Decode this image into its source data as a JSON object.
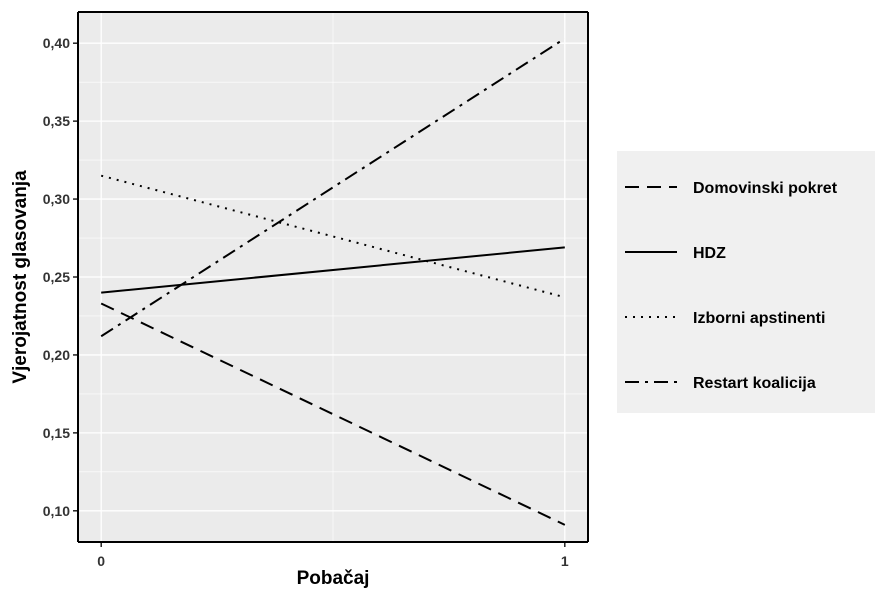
{
  "chart_data": {
    "type": "line",
    "xlabel": "Pobačaj",
    "ylabel": "Vjerojatnost glasovanja",
    "x": [
      0,
      1
    ],
    "x_tick_labels": [
      "0",
      "1"
    ],
    "xlim": [
      -0.05,
      1.05
    ],
    "y_ticks": [
      0.1,
      0.15,
      0.2,
      0.25,
      0.3,
      0.35,
      0.4
    ],
    "y_tick_labels": [
      "0,10",
      "0,15",
      "0,20",
      "0,25",
      "0,30",
      "0,35",
      "0,40"
    ],
    "ylim": [
      0.08,
      0.42
    ],
    "grid": true,
    "legend_position": "right",
    "series": [
      {
        "name": "Domovinski pokret",
        "values": [
          0.233,
          0.091
        ],
        "linetype": "dashed"
      },
      {
        "name": "HDZ",
        "values": [
          0.24,
          0.269
        ],
        "linetype": "solid"
      },
      {
        "name": "Izborni apstinenti",
        "values": [
          0.315,
          0.237
        ],
        "linetype": "dotted"
      },
      {
        "name": "Restart koalicija",
        "values": [
          0.212,
          0.403
        ],
        "linetype": "dashdot"
      }
    ],
    "colors": {
      "panel_background": "#ebebeb",
      "grid": "#ffffff",
      "line": "#000000",
      "legend_background": "#f0f0f0"
    }
  }
}
